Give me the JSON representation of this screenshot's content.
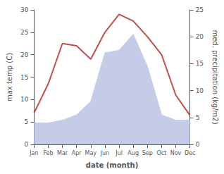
{
  "chart_data": {
    "type": "line",
    "categories": [
      "Jan",
      "Feb",
      "Mar",
      "Apr",
      "May",
      "Jun",
      "Jul",
      "Aug",
      "Sep",
      "Oct",
      "Nov",
      "Dec"
    ],
    "xlabel": "date (month)",
    "ylabel": "max temp (C)",
    "y2label": "med. precipitation (kg/m2)",
    "series": [
      {
        "type": "area",
        "color": "#c5cce8",
        "axis": "y2",
        "values": [
          4.0,
          4.0,
          4.5,
          5.5,
          8.0,
          17.0,
          17.5,
          20.5,
          14.5,
          5.5,
          4.5,
          4.5
        ]
      },
      {
        "type": "line",
        "color": "#c0504d",
        "values": [
          7.0,
          13.5,
          22.5,
          22.0,
          19.0,
          25.0,
          29.0,
          27.5,
          24.0,
          20.0,
          11.0,
          6.5
        ]
      }
    ],
    "ylim": [
      0,
      30
    ],
    "yticks": [
      0,
      5,
      10,
      15,
      20,
      25,
      30
    ],
    "y2lim": [
      0,
      25
    ],
    "y2ticks": [
      0,
      5,
      10,
      15,
      20,
      25
    ],
    "grid": false
  }
}
